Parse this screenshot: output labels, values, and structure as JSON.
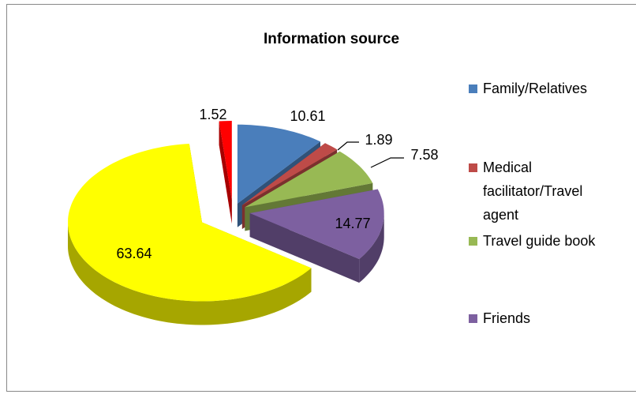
{
  "chart_data": {
    "type": "pie3d",
    "title": "Information source",
    "categories": [
      "Family/Relatives",
      "Medical facilitator/Travel agent",
      "Travel guide book",
      "Friends",
      null,
      null
    ],
    "values": [
      10.61,
      1.89,
      7.58,
      14.77,
      63.64,
      1.52
    ],
    "colors": [
      "#4a7ebb",
      "#be4b48",
      "#98b954",
      "#7d60a0",
      "#ffff00",
      "#ff0000"
    ],
    "legend": "right"
  }
}
